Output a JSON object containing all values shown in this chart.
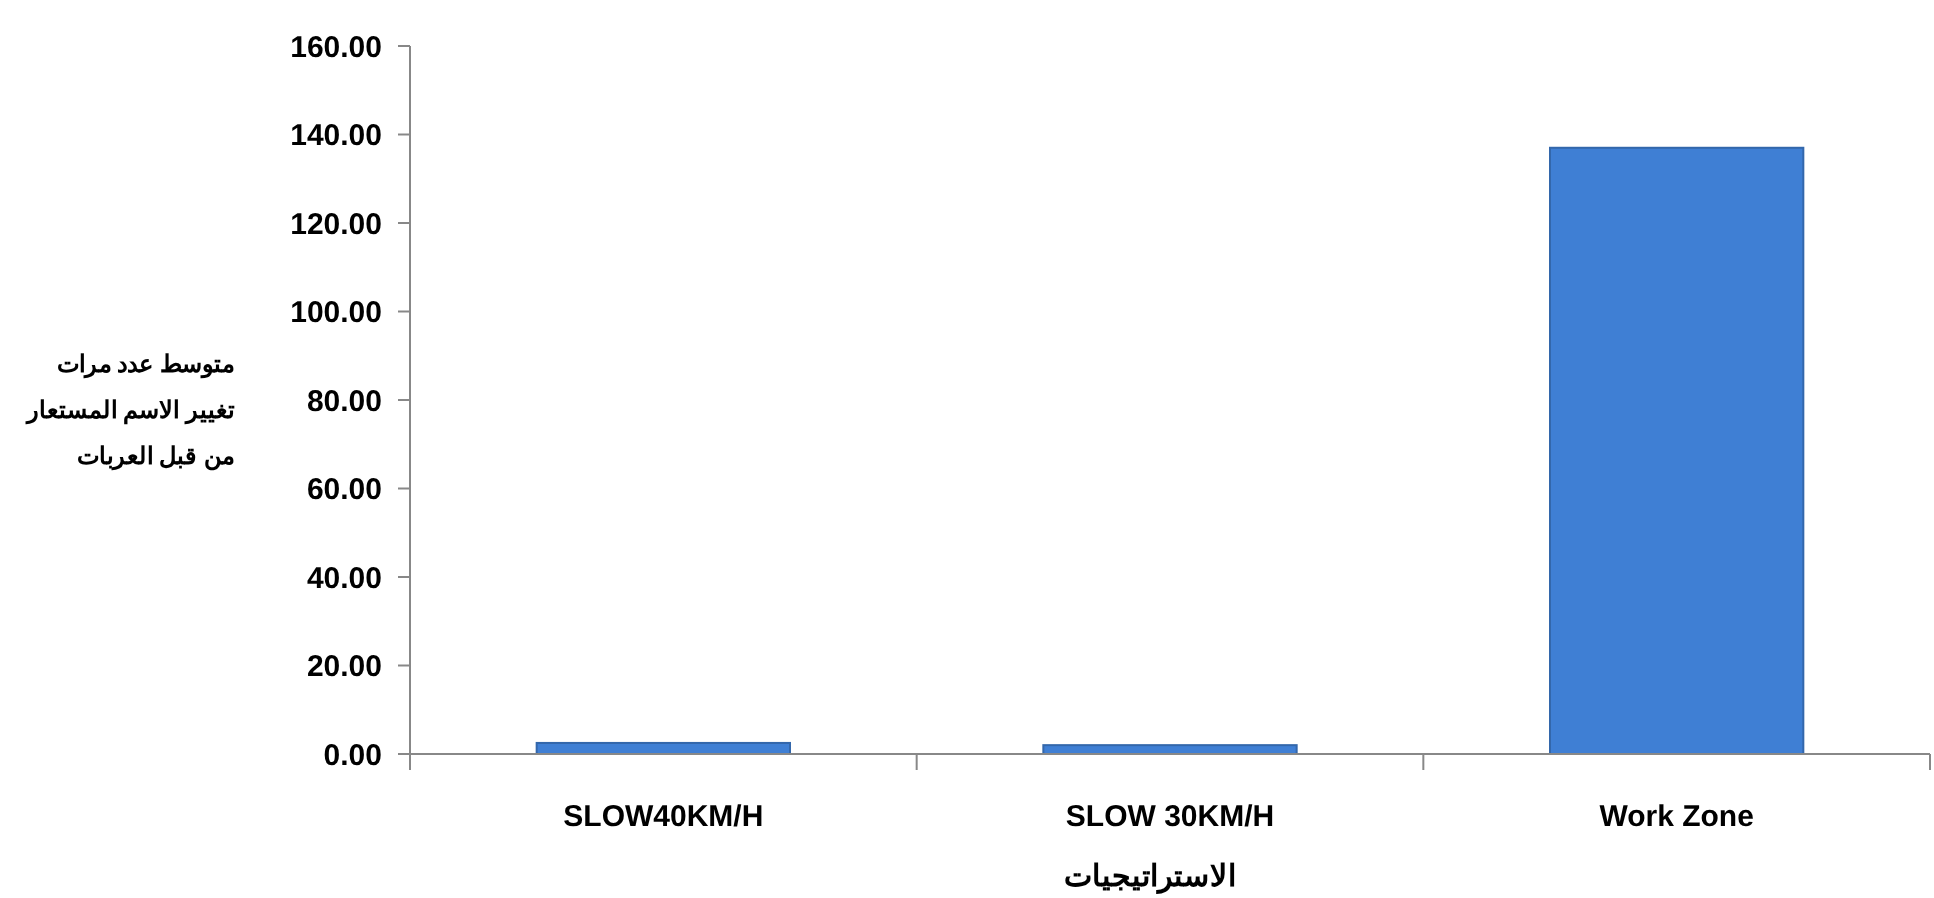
{
  "chart_data": {
    "type": "bar",
    "categories": [
      "SLOW40KM/H",
      "SLOW 30KM/H",
      "Work Zone"
    ],
    "values": [
      2.5,
      2,
      137
    ],
    "color": "#3f7fd4",
    "ylim": [
      0,
      160
    ],
    "yticks": [
      {
        "value": 0,
        "label": "0.00"
      },
      {
        "value": 20,
        "label": "20.00"
      },
      {
        "value": 40,
        "label": "40.00"
      },
      {
        "value": 60,
        "label": "60.00"
      },
      {
        "value": 80,
        "label": "80.00"
      },
      {
        "value": 100,
        "label": "100.00"
      },
      {
        "value": 120,
        "label": "120.00"
      },
      {
        "value": 140,
        "label": "140.00"
      },
      {
        "value": 160,
        "label": "160.00"
      }
    ],
    "xlabel": "الاستراتيجيات",
    "ylabel": "متوسط عدد مرات\nتغيير الاسم المستعار\nمن قبل العربات",
    "grid": false
  }
}
